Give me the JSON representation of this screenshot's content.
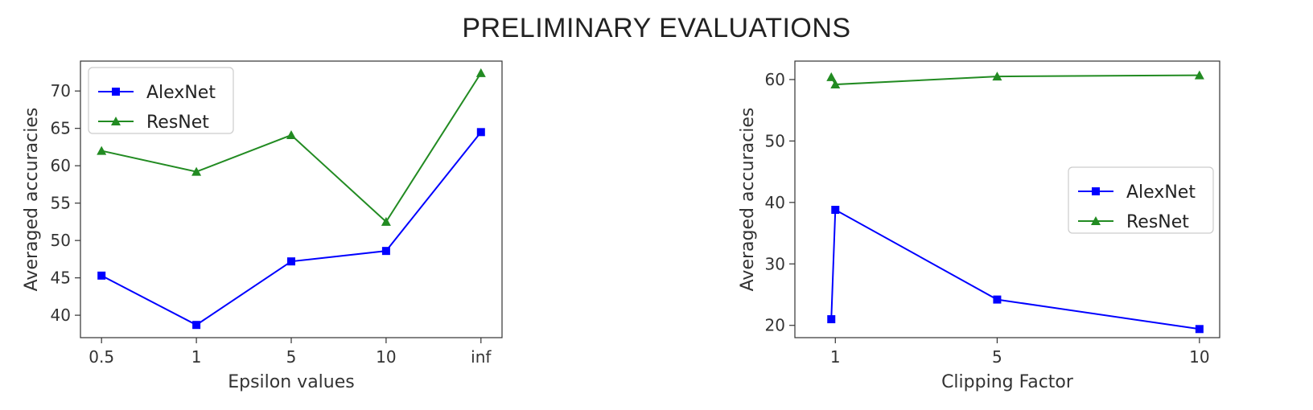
{
  "page": {
    "title": "PRELIMINARY EVALUATIONS"
  },
  "chart_data": [
    {
      "type": "line",
      "xlabel": "Epsilon values",
      "ylabel": "Averaged accuracies",
      "x_scale": "categorical",
      "categories": [
        "0.5",
        "1",
        "5",
        "10",
        "inf"
      ],
      "ylim": [
        37,
        74
      ],
      "yticks": [
        40,
        45,
        50,
        55,
        60,
        65,
        70
      ],
      "legend": "top-left",
      "grid": false,
      "series": [
        {
          "name": "AlexNet",
          "color": "#0000ff",
          "marker": "square",
          "values": [
            45.3,
            38.7,
            47.2,
            48.6,
            64.5
          ]
        },
        {
          "name": "ResNet",
          "color": "#228b22",
          "marker": "triangle",
          "values": [
            62.0,
            59.2,
            64.1,
            52.5,
            72.4
          ]
        }
      ]
    },
    {
      "type": "line",
      "xlabel": "Clipping Factor",
      "ylabel": "Averaged accuracies",
      "x_scale": "linear",
      "x": [
        0.9,
        1,
        5,
        10
      ],
      "xlim": [
        0.0,
        10.5
      ],
      "xticks": [
        1,
        5,
        10
      ],
      "ylim": [
        18,
        63
      ],
      "yticks": [
        20,
        30,
        40,
        50,
        60
      ],
      "legend": "center-right",
      "grid": false,
      "series": [
        {
          "name": "AlexNet",
          "color": "#0000ff",
          "marker": "square",
          "values": [
            21.0,
            38.8,
            24.2,
            19.4
          ]
        },
        {
          "name": "ResNet",
          "color": "#228b22",
          "marker": "triangle",
          "values": [
            60.4,
            59.2,
            60.5,
            60.7
          ]
        }
      ]
    }
  ]
}
